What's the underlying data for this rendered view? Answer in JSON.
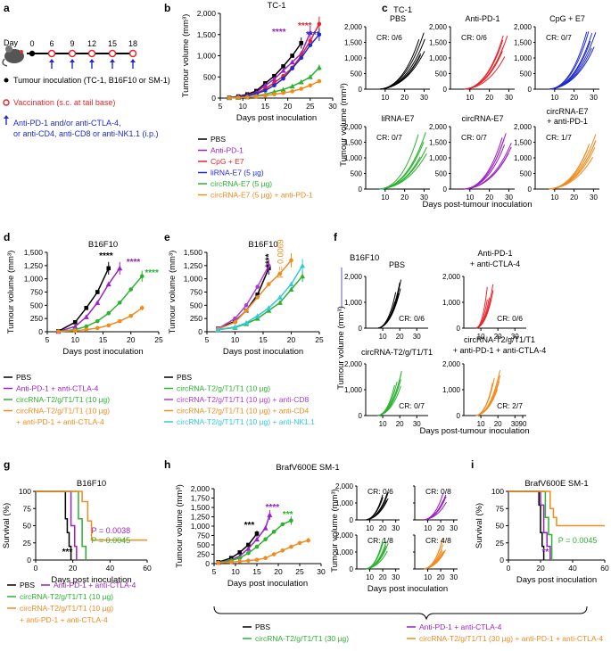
{
  "colors": {
    "pbs": "#000000",
    "antipd1": "#9b1fc6",
    "cpg": "#e8242a",
    "lirna": "#1f2ad1",
    "circ": "#2bb22f",
    "circpd1": "#f28a1c",
    "cd8": "#b13bd6",
    "cd4": "#ef8c1e",
    "nk": "#33c9db"
  },
  "panel_a": {
    "letter": "a",
    "days": [
      "0",
      "6",
      "9",
      "12",
      "15",
      "18"
    ],
    "day_label": "Day",
    "legend": [
      {
        "symbol": "dot",
        "text": "Tumour inoculation (TC-1, B16F10 or SM-1)"
      },
      {
        "symbol": "circle",
        "text": "Vaccination (s.c. at tail base)"
      },
      {
        "symbol": "arrow",
        "text": "Anti-PD-1 and/or anti-CTLA-4, or anti-CD4, anti-CD8 or anti-NK1.1 (i.p.)"
      }
    ]
  },
  "chart_data": [
    {
      "id": "b",
      "type": "line",
      "panel_letter": "b",
      "title": "TC-1",
      "xlabel": "Days post inoculation",
      "ylabel": "Tumour volume (mm³)",
      "xlim": [
        5,
        30
      ],
      "ylim": [
        0,
        2000
      ],
      "xticks": [
        5,
        10,
        15,
        20,
        25,
        30
      ],
      "yticks": [
        0,
        500,
        1000,
        1500,
        2000
      ],
      "series": [
        {
          "name": "PBS",
          "color": "#000000",
          "x": [
            7,
            9,
            11,
            13,
            15,
            17,
            19,
            21,
            23
          ],
          "y": [
            10,
            40,
            90,
            170,
            350,
            520,
            750,
            1000,
            1300
          ]
        },
        {
          "name": "Anti-PD-1",
          "color": "#9b1fc6",
          "x": [
            7,
            9,
            11,
            13,
            15,
            17,
            19,
            21,
            23,
            25
          ],
          "y": [
            10,
            30,
            70,
            130,
            300,
            450,
            650,
            850,
            1050,
            1550
          ]
        },
        {
          "name": "CpG + E7",
          "color": "#e8242a",
          "x": [
            7,
            9,
            11,
            13,
            15,
            17,
            19,
            21,
            23,
            25,
            27
          ],
          "y": [
            10,
            30,
            60,
            110,
            220,
            360,
            520,
            720,
            1000,
            1350,
            1750
          ]
        },
        {
          "name": "liRNA-E7 (5 µg)",
          "color": "#1f2ad1",
          "x": [
            7,
            9,
            11,
            13,
            15,
            17,
            19,
            21,
            23,
            25,
            27
          ],
          "y": [
            10,
            25,
            55,
            100,
            180,
            300,
            460,
            700,
            950,
            1250,
            1500
          ]
        },
        {
          "name": "circRNA-E7 (5 µg)",
          "color": "#2bb22f",
          "x": [
            7,
            9,
            11,
            13,
            15,
            17,
            19,
            21,
            23,
            25,
            27
          ],
          "y": [
            5,
            10,
            25,
            50,
            90,
            150,
            200,
            280,
            380,
            500,
            720
          ]
        },
        {
          "name": "circRNA-E7 (5 µg) + anti-PD-1",
          "color": "#f28a1c",
          "x": [
            7,
            9,
            11,
            13,
            15,
            17,
            19,
            21,
            23,
            25,
            27
          ],
          "y": [
            5,
            10,
            20,
            40,
            60,
            90,
            120,
            160,
            220,
            300,
            400
          ]
        }
      ],
      "annotations": [
        {
          "text": "****",
          "color": "#e8242a"
        },
        {
          "text": "****",
          "color": "#9b1fc6"
        },
        {
          "text": "****",
          "color": "#1f2ad1"
        }
      ]
    },
    {
      "id": "d",
      "type": "line",
      "panel_letter": "d",
      "title": "B16F10",
      "xlabel": "Days post inoculation",
      "ylabel": "Tumour volume (mm³)",
      "xlim": [
        5,
        25
      ],
      "ylim": [
        0,
        1500
      ],
      "xticks": [
        5,
        10,
        15,
        20,
        25
      ],
      "yticks": [
        0,
        250,
        500,
        750,
        1000,
        1250,
        1500
      ],
      "series": [
        {
          "name": "PBS",
          "color": "#000000",
          "x": [
            7,
            10,
            12,
            14,
            16
          ],
          "y": [
            10,
            180,
            450,
            750,
            1200
          ]
        },
        {
          "name": "Anti-PD-1 + anti-CTLA-4",
          "color": "#9b1fc6",
          "x": [
            7,
            10,
            12,
            14,
            16,
            18
          ],
          "y": [
            5,
            100,
            280,
            550,
            900,
            1200
          ]
        },
        {
          "name": "circRNA-T2/g/T1/T1 (10 µg)",
          "color": "#2bb22f",
          "x": [
            7,
            10,
            12,
            14,
            16,
            18,
            20,
            22
          ],
          "y": [
            5,
            40,
            100,
            200,
            350,
            550,
            800,
            1050
          ]
        },
        {
          "name": "circRNA-T2/g/T1/T1 (10 µg) + anti-PD-1 + anti-CTLA-4",
          "color": "#f28a1c",
          "x": [
            7,
            10,
            12,
            14,
            16,
            18,
            20,
            22
          ],
          "y": [
            5,
            20,
            40,
            70,
            120,
            200,
            300,
            450
          ]
        }
      ],
      "annotations": [
        {
          "text": "****",
          "color": "#000000"
        },
        {
          "text": "****",
          "color": "#9b1fc6"
        },
        {
          "text": "****",
          "color": "#2bb22f"
        }
      ]
    },
    {
      "id": "e",
      "type": "line",
      "panel_letter": "e",
      "title": "B16F10",
      "xlabel": "Days post inoculation",
      "ylabel": "Tumour volume (mm³)",
      "xlim": [
        5,
        25
      ],
      "ylim": [
        0,
        1500
      ],
      "xticks": [
        5,
        10,
        15,
        20,
        25
      ],
      "yticks": [
        0,
        250,
        500,
        750,
        1000,
        1250,
        1500
      ],
      "series": [
        {
          "name": "PBS",
          "color": "#000000",
          "x": [
            7,
            10,
            12,
            14,
            16
          ],
          "y": [
            60,
            200,
            400,
            700,
            1200
          ]
        },
        {
          "name": "circRNA-T2/g/T1/T1 (10 µg)",
          "color": "#2bb22f",
          "x": [
            7,
            10,
            12,
            14,
            16,
            18,
            20,
            22
          ],
          "y": [
            40,
            80,
            150,
            250,
            400,
            550,
            800,
            1050
          ]
        },
        {
          "name": "circRNA-T2/g/T1/T1 (10 µg) + anti-CD8",
          "color": "#b13bd6",
          "x": [
            7,
            10,
            12,
            14,
            16
          ],
          "y": [
            60,
            250,
            500,
            850,
            1250
          ]
        },
        {
          "name": "circRNA-T2/g/T1/T1 (10 µg) + anti-CD4",
          "color": "#ef8c1e",
          "x": [
            7,
            10,
            12,
            14,
            16,
            18,
            20
          ],
          "y": [
            50,
            180,
            400,
            650,
            900,
            1100,
            1350
          ]
        },
        {
          "name": "circRNA-T2/g/T1/T1 (10 µg) + anti-NK1.1",
          "color": "#33c9db",
          "x": [
            7,
            10,
            12,
            14,
            16,
            18,
            20,
            22
          ],
          "y": [
            40,
            90,
            170,
            300,
            450,
            650,
            900,
            1250
          ]
        }
      ],
      "annotations": [
        {
          "text": "****",
          "color": "#000000"
        },
        {
          "text": "P = 0.0069",
          "color": "#ef8c1e"
        }
      ]
    },
    {
      "id": "g",
      "type": "line",
      "panel_letter": "g",
      "title": "B16F10",
      "xlabel": "Days post inoculation",
      "ylabel": "Survival (%)",
      "xlim": [
        0,
        60
      ],
      "ylim": [
        0,
        100
      ],
      "xticks": [
        0,
        20,
        40,
        60
      ],
      "yticks": [
        0,
        25,
        50,
        75,
        100
      ],
      "series": [
        {
          "name": "PBS",
          "color": "#000000",
          "x": [
            0,
            15,
            16,
            17,
            18,
            19
          ],
          "y": [
            100,
            100,
            60,
            40,
            20,
            0
          ]
        },
        {
          "name": "Anti-PD-1 + anti-CTLA-4",
          "color": "#9b1fc6",
          "x": [
            0,
            17,
            19,
            21,
            22
          ],
          "y": [
            100,
            100,
            50,
            20,
            0
          ]
        },
        {
          "name": "circRNA-T2/g/T1/T1 (10 µg)",
          "color": "#2bb22f",
          "x": [
            0,
            20,
            23,
            25,
            27
          ],
          "y": [
            100,
            100,
            60,
            20,
            0
          ]
        },
        {
          "name": "circRNA-T2/g/T1/T1 (10 µg) + anti-PD-1 + anti-CTLA-4",
          "color": "#f28a1c",
          "x": [
            0,
            22,
            25,
            28,
            30,
            60
          ],
          "y": [
            100,
            100,
            85,
            57,
            29,
            29
          ]
        }
      ],
      "annotations": [
        {
          "text": "***",
          "color": "#000000"
        },
        {
          "text": "P = 0.0038",
          "color": "#9b1fc6"
        },
        {
          "text": "P = 0.0045",
          "color": "#2bb22f"
        }
      ]
    },
    {
      "id": "h",
      "type": "line",
      "panel_letter": "h",
      "title": "BrafV600E SM-1",
      "xlabel": "Days post inoculation",
      "ylabel": "Tumour volume (mm³)",
      "xlim": [
        5,
        30
      ],
      "ylim": [
        0,
        2000
      ],
      "xticks": [
        5,
        10,
        15,
        20,
        25,
        30
      ],
      "yticks": [
        0,
        250,
        500,
        750,
        1000,
        1250,
        1500,
        1750,
        2000
      ],
      "series": [
        {
          "name": "PBS",
          "color": "#000000",
          "x": [
            6,
            9,
            11,
            13,
            15
          ],
          "y": [
            40,
            150,
            300,
            500,
            800
          ]
        },
        {
          "name": "Anti-PD-1 + anti-CTLA-4",
          "color": "#9b1fc6",
          "x": [
            6,
            9,
            11,
            13,
            15,
            17,
            18
          ],
          "y": [
            30,
            100,
            200,
            400,
            650,
            950,
            1300
          ]
        },
        {
          "name": "circRNA-T2/g/T1/T1 (30 µg)",
          "color": "#2bb22f",
          "x": [
            6,
            9,
            11,
            13,
            15,
            17,
            19,
            21,
            23
          ],
          "y": [
            30,
            80,
            150,
            280,
            450,
            650,
            850,
            1050,
            1150
          ]
        },
        {
          "name": "circRNA-T2/g/T1/T1 (30 µg) + anti-PD-1 + anti-CTLA-4",
          "color": "#f28a1c",
          "x": [
            6,
            9,
            11,
            13,
            15,
            17,
            19,
            21,
            23,
            25,
            27
          ],
          "y": [
            20,
            40,
            60,
            80,
            100,
            150,
            250,
            350,
            450,
            550,
            620
          ]
        }
      ],
      "annotations": [
        {
          "text": "***",
          "color": "#000000"
        },
        {
          "text": "****",
          "color": "#9b1fc6"
        },
        {
          "text": "***",
          "color": "#2bb22f"
        }
      ]
    },
    {
      "id": "i",
      "type": "line",
      "panel_letter": "i",
      "title": "BrafV600E SM-1",
      "xlabel": "Days post inoculation",
      "ylabel": "Survival (%)",
      "xlim": [
        0,
        60
      ],
      "ylim": [
        0,
        100
      ],
      "xticks": [
        0,
        20,
        40,
        60
      ],
      "yticks": [
        0,
        25,
        50,
        75,
        100
      ],
      "series": [
        {
          "name": "PBS",
          "color": "#000000",
          "x": [
            0,
            17,
            19,
            20,
            21,
            22
          ],
          "y": [
            100,
            100,
            80,
            40,
            20,
            0
          ]
        },
        {
          "name": "Anti-PD-1 + anti-CTLA-4",
          "color": "#9b1fc6",
          "x": [
            0,
            18,
            20,
            22,
            24,
            26
          ],
          "y": [
            100,
            100,
            80,
            40,
            20,
            0
          ]
        },
        {
          "name": "circRNA-T2/g/T1/T1 (30 µg)",
          "color": "#2bb22f",
          "x": [
            0,
            20,
            23,
            25,
            27
          ],
          "y": [
            100,
            100,
            62,
            37,
            0
          ]
        },
        {
          "name": "circRNA-T2/g/T1/T1 (30 µg) + anti-PD-1 + anti-CTLA-4",
          "color": "#f28a1c",
          "x": [
            0,
            24,
            26,
            28,
            30,
            60
          ],
          "y": [
            100,
            100,
            75,
            62,
            50,
            50
          ]
        }
      ],
      "annotations": [
        {
          "text": "**",
          "color": "#9b1fc6"
        },
        {
          "text": "P = 0.0045",
          "color": "#2bb22f"
        }
      ]
    }
  ],
  "small_multiples": {
    "c": {
      "letter": "c",
      "title": "TC-1",
      "ylabel": "Tumour volume (mm³)",
      "xlabel": "Days post-tumour inoculation",
      "yticks": [
        "0",
        "500",
        "1,000",
        "1,500",
        "2,000"
      ],
      "xticks": [
        "10",
        "20",
        "30"
      ],
      "panels": [
        {
          "name": "PBS",
          "color": "#000000",
          "cr": "CR: 0/6",
          "n": 6
        },
        {
          "name": "Anti-PD-1",
          "color": "#e8242a",
          "cr": "CR: 0/6",
          "n": 6
        },
        {
          "name": "CpG + E7",
          "color": "#1f2ad1",
          "cr": "CR: 0/7",
          "n": 7
        },
        {
          "name": "liRNA-E7",
          "color": "#2bb22f",
          "cr": "CR: 0/7",
          "n": 7
        },
        {
          "name": "circRNA-E7",
          "color": "#9b1fc6",
          "cr": "CR: 0/7",
          "n": 7
        },
        {
          "name": "circRNA-E7 + anti-PD-1",
          "color": "#f28a1c",
          "cr": "CR: 1/7",
          "n": 7
        }
      ]
    },
    "f": {
      "letter": "f",
      "title": "B16F10",
      "ylabel": "Tumour volume (mm³)",
      "xlabel": "Days post-tumour inoculation",
      "yticks": [
        "0",
        "1,000",
        "2,000"
      ],
      "xticks": [
        "10",
        "20",
        "30"
      ],
      "panels": [
        {
          "name": "PBS",
          "color": "#000000",
          "cr": "CR: 0/6",
          "n": 6
        },
        {
          "name": "Anti-PD-1 + anti-CTLA-4",
          "color": "#e8242a",
          "cr": "CR: 0/6",
          "n": 6
        },
        {
          "name": "circRNA-T2/g/T1/T1",
          "color": "#2bb22f",
          "cr": "CR: 0/7",
          "n": 7
        },
        {
          "name": "circRNA-T2/g/T1/T1 + anti-PD-1 + anti-CTLA-4",
          "color": "#f28a1c",
          "cr": "CR: 2/7",
          "n": 7,
          "extra_tick": "90"
        }
      ]
    },
    "h2": {
      "ylabel": "Tumour volume (mm³)",
      "xlabel": "Days post inoculation",
      "yticks": [
        "0",
        "1,000",
        "2,000"
      ],
      "xticks": [
        "10",
        "20",
        "30"
      ],
      "panels": [
        {
          "color": "#000000",
          "cr": "CR: 0/6",
          "n": 6
        },
        {
          "color": "#9b1fc6",
          "cr": "CR: 0/8",
          "n": 8
        },
        {
          "color": "#2bb22f",
          "cr": "CR: 1/8",
          "n": 8
        },
        {
          "color": "#f28a1c",
          "cr": "CR: 4/8",
          "n": 8
        }
      ]
    }
  },
  "legends": {
    "b": [
      "PBS",
      "Anti-PD-1",
      "CpG + E7",
      "liRNA-E7 (5 µg)",
      "circRNA-E7 (5 µg)",
      "circRNA-E7 (5 µg) + anti-PD-1"
    ],
    "d": [
      "PBS",
      "Anti-PD-1 + anti-CTLA-4",
      "circRNA-T2/g/T1/T1 (10 µg)",
      "circRNA-T2/g/T1/T1 (10 µg)",
      "+ anti-PD-1 + anti-CTLA-4"
    ],
    "e": [
      "PBS",
      "circRNA-T2/g/T1/T1 (10 µg)",
      "circRNA-T2/g/T1/T1 (10 µg) + anti-CD8",
      "circRNA-T2/g/T1/T1 (10 µg) + anti-CD4",
      "circRNA-T2/g/T1/T1 (10 µg) + anti-NK1.1"
    ],
    "g": [
      "PBS",
      "Anti-PD-1 + anti-CTLA-4",
      "circRNA-T2/g/T1/T1 (10 µg)",
      "circRNA-T2/g/T1/T1 (10 µg)",
      "+ anti-PD-1 + anti-CTLA-4"
    ],
    "hi": [
      "PBS",
      "Anti-PD-1 + anti-CTLA-4",
      "circRNA-T2/g/T1/T1 (30 µg)",
      "circRNA-T2/g/T1/T1 (30 µg) + anti-PD-1 + anti-CTLA-4"
    ]
  }
}
